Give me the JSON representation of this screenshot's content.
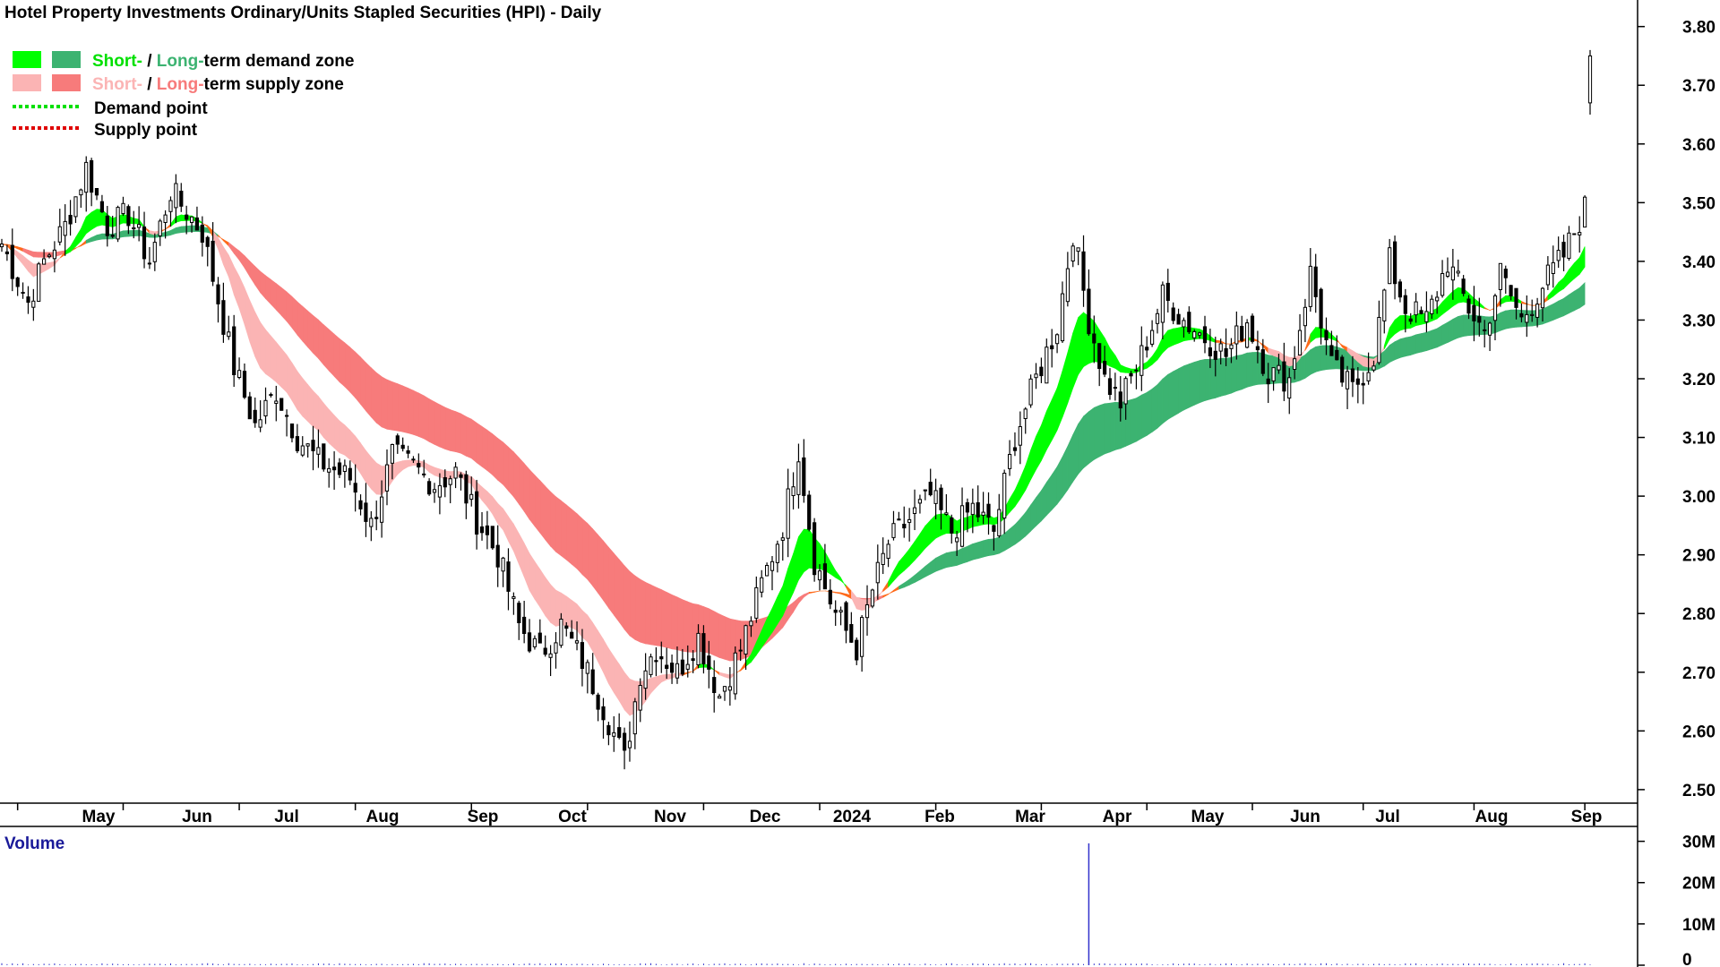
{
  "chart_data": {
    "type": "candlestick",
    "title": "Hotel Property Investments Ordinary/Units Stapled Securities (HPI) - Daily",
    "legend": {
      "placement": "top-left",
      "demand_zone": {
        "short": "Short-",
        "sep": " / ",
        "long": "Long-",
        "rest": "term demand zone"
      },
      "supply_zone": {
        "short": "Short-",
        "sep": " / ",
        "long": "Long-",
        "rest": "term supply zone"
      },
      "demand_point": "Demand point",
      "supply_point": "Supply point"
    },
    "x_ticks": [
      "May",
      "Jun",
      "Jul",
      "Aug",
      "Sep",
      "Oct",
      "Nov",
      "Dec",
      "2024",
      "Feb",
      "Mar",
      "Apr",
      "May",
      "Jun",
      "Jul",
      "Aug",
      "Sep"
    ],
    "y_ticks": [
      "2.50",
      "2.60",
      "2.70",
      "2.80",
      "2.90",
      "3.00",
      "3.10",
      "3.20",
      "3.30",
      "3.40",
      "3.50",
      "3.60",
      "3.70",
      "3.80"
    ],
    "ylim": [
      2.48,
      3.83
    ],
    "grid": false,
    "price_path": [
      [
        0,
        3.43
      ],
      [
        5,
        3.33
      ],
      [
        8,
        3.4
      ],
      [
        12,
        3.46
      ],
      [
        16,
        3.56
      ],
      [
        20,
        3.46
      ],
      [
        24,
        3.48
      ],
      [
        28,
        3.4
      ],
      [
        32,
        3.52
      ],
      [
        38,
        3.45
      ],
      [
        44,
        3.22
      ],
      [
        48,
        3.12
      ],
      [
        52,
        3.18
      ],
      [
        56,
        3.1
      ],
      [
        60,
        3.06
      ],
      [
        66,
        3.03
      ],
      [
        70,
        2.95
      ],
      [
        74,
        3.07
      ],
      [
        78,
        3.05
      ],
      [
        82,
        3.02
      ],
      [
        86,
        3.04
      ],
      [
        90,
        2.96
      ],
      [
        94,
        2.9
      ],
      [
        98,
        2.78
      ],
      [
        102,
        2.73
      ],
      [
        106,
        2.78
      ],
      [
        110,
        2.72
      ],
      [
        114,
        2.64
      ],
      [
        118,
        2.55
      ],
      [
        121,
        2.7
      ],
      [
        124,
        2.74
      ],
      [
        128,
        2.7
      ],
      [
        132,
        2.76
      ],
      [
        136,
        2.66
      ],
      [
        140,
        2.74
      ],
      [
        144,
        2.85
      ],
      [
        148,
        2.95
      ],
      [
        151,
        3.08
      ],
      [
        154,
        2.89
      ],
      [
        158,
        2.8
      ],
      [
        162,
        2.74
      ],
      [
        165,
        2.84
      ],
      [
        168,
        2.92
      ],
      [
        172,
        2.96
      ],
      [
        176,
        3.0
      ],
      [
        180,
        2.94
      ],
      [
        184,
        2.98
      ],
      [
        188,
        2.94
      ],
      [
        192,
        3.1
      ],
      [
        196,
        3.2
      ],
      [
        200,
        3.29
      ],
      [
        203,
        3.45
      ],
      [
        206,
        3.3
      ],
      [
        209,
        3.2
      ],
      [
        212,
        3.16
      ],
      [
        216,
        3.24
      ],
      [
        220,
        3.34
      ],
      [
        224,
        3.3
      ],
      [
        228,
        3.27
      ],
      [
        232,
        3.24
      ],
      [
        236,
        3.3
      ],
      [
        240,
        3.21
      ],
      [
        244,
        3.2
      ],
      [
        248,
        3.38
      ],
      [
        252,
        3.22
      ],
      [
        256,
        3.18
      ],
      [
        260,
        3.24
      ],
      [
        263,
        3.4
      ],
      [
        266,
        3.32
      ],
      [
        270,
        3.3
      ],
      [
        274,
        3.4
      ],
      [
        278,
        3.32
      ],
      [
        281,
        3.28
      ],
      [
        284,
        3.38
      ],
      [
        288,
        3.3
      ],
      [
        292,
        3.36
      ],
      [
        296,
        3.41
      ],
      [
        300,
        3.49
      ],
      [
        301,
        3.48
      ]
    ],
    "last_bar": {
      "open": 3.67,
      "close": 3.75,
      "high": 3.76,
      "low": 3.65
    },
    "volume": {
      "label": "Volume",
      "y_ticks": [
        "0",
        "10M",
        "20M",
        "30M"
      ],
      "ylim": [
        0,
        31
      ],
      "spikes": [
        [
          206,
          29.5
        ]
      ],
      "baseline": 0.35
    },
    "zones": {
      "long_supply": {
        "start": 0,
        "end": 180,
        "color": "#f77b7b"
      },
      "short_supply": {
        "start": 38,
        "end": 120,
        "color": "#fbb4b4"
      },
      "short_demand": {
        "color": "#00ff00"
      },
      "long_demand": {
        "color": "#3cb371"
      },
      "transition": {
        "color": "#ff6a1a"
      }
    },
    "colors": {
      "candle": "#000000",
      "axis": "#000000",
      "volume_bar": "#3333cc",
      "demand_point": "#00e000",
      "supply_point": "#e00000"
    }
  }
}
